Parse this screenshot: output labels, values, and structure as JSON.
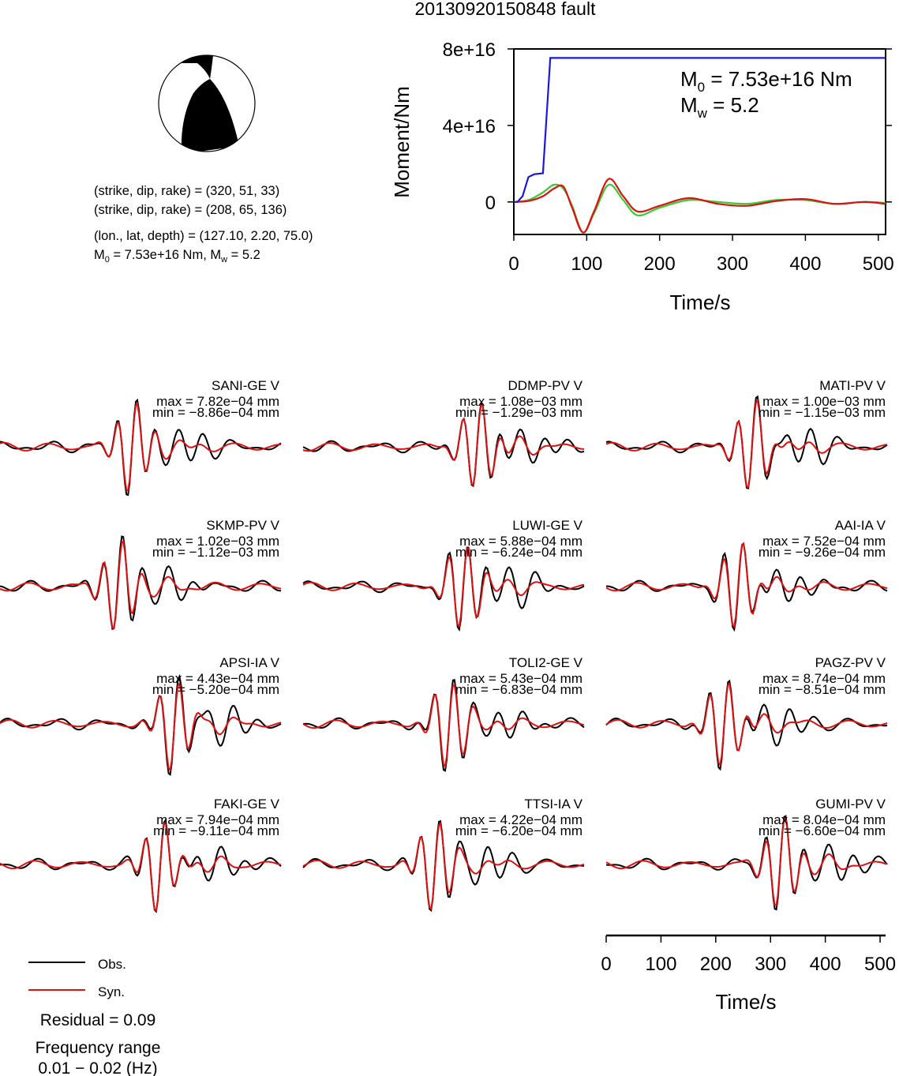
{
  "title": "20130920150848 fault",
  "mechanism": {
    "plane1": "(strike, dip, rake) = (320, 51, 33)",
    "plane2": "(strike, dip, rake) = (208, 65, 136)",
    "location": "(lon., lat, depth) = (127.10, 2.20, 75.0)",
    "m0_prefix": "M",
    "m0_sub": "0",
    "m0_mid": " = 7.53e+16 Nm, M",
    "mw_sub": "w",
    "mw_tail": " = 5.2"
  },
  "chart_data": [
    {
      "type": "line",
      "ylabel": "Moment/Nm",
      "xlabel": "Time/s",
      "xlim": [
        0,
        510
      ],
      "ylim": [
        -1.7e+16,
        8e+16
      ],
      "xticks": [
        "0",
        "100",
        "200",
        "300",
        "400",
        "500"
      ],
      "yticks": [
        "8e+16",
        "4e+16",
        "0"
      ],
      "annotation": {
        "m0_main": "M",
        "m0_sub": "0",
        "m0_rest": " = 7.53e+16 Nm",
        "mw_main": "M",
        "mw_sub": "w",
        "mw_rest": " = 5.2"
      },
      "colors": {
        "cumulative": "#1818e0",
        "red": "#dd1111",
        "green": "#33cc33"
      },
      "series": [
        {
          "color": "blue",
          "x": [
            0,
            5,
            12,
            20,
            28,
            40,
            50,
            60,
            510
          ],
          "y": [
            0,
            0,
            3000000000000000.0,
            1.3e+16,
            1.45e+16,
            1.5e+16,
            7.53e+16,
            7.53e+16,
            7.53e+16
          ]
        },
        {
          "color": "red",
          "x": [
            0,
            20,
            40,
            55,
            68,
            80,
            95,
            110,
            130,
            150,
            170,
            200,
            240,
            280,
            320,
            360,
            400,
            440,
            480,
            510
          ],
          "y": [
            0,
            500000000000000.0,
            3000000000000000.0,
            7000000000000000.0,
            8000000000000000.0,
            -3000000000000000.0,
            -1.6e+16,
            -5000000000000000.0,
            1.2e+16,
            3000000000000000.0,
            -5000000000000000.0,
            -2000000000000000.0,
            2000000000000000.0,
            -1000000000000000.0,
            -2000000000000000.0,
            500000000000000.0,
            1500000000000000.0,
            -1000000000000000.0,
            0,
            -1000000000000000.0
          ]
        },
        {
          "color": "green",
          "x": [
            0,
            20,
            40,
            55,
            68,
            80,
            95,
            110,
            130,
            150,
            170,
            200,
            240,
            280,
            320,
            360,
            400,
            440,
            480,
            510
          ],
          "y": [
            0,
            1000000000000000.0,
            5000000000000000.0,
            9000000000000000.0,
            7000000000000000.0,
            -2000000000000000.0,
            -1.6e+16,
            -6000000000000000.0,
            9000000000000000.0,
            1000000000000000.0,
            -7000000000000000.0,
            -3000000000000000.0,
            1000000000000000.0,
            0,
            -1000000000000000.0,
            1000000000000000.0,
            1000000000000000.0,
            -1000000000000000.0,
            0,
            -500000000000000.0
          ]
        }
      ]
    },
    {
      "type": "line",
      "panel": "waveforms",
      "xlabel": "Time/s",
      "xlim": [
        0,
        510
      ],
      "xticks": [
        "0",
        "100",
        "200",
        "300",
        "400",
        "500"
      ],
      "stations": [
        {
          "name": "SANI-GE V",
          "max": "max = 7.82e−04 mm",
          "min": "min = −8.86e−04 mm"
        },
        {
          "name": "DDMP-PV V",
          "max": "max = 1.08e−03 mm",
          "min": "min = −1.29e−03 mm"
        },
        {
          "name": "MATI-PV V",
          "max": "max = 1.00e−03 mm",
          "min": "min = −1.15e−03 mm"
        },
        {
          "name": "SKMP-PV V",
          "max": "max = 1.02e−03 mm",
          "min": "min = −1.12e−03 mm"
        },
        {
          "name": "LUWI-GE V",
          "max": "max = 5.88e−04 mm",
          "min": "min = −6.24e−04 mm"
        },
        {
          "name": "AAI-IA V",
          "max": "max = 7.52e−04 mm",
          "min": "min = −9.26e−04 mm"
        },
        {
          "name": "APSI-IA V",
          "max": "max = 4.43e−04 mm",
          "min": "min = −5.20e−04 mm"
        },
        {
          "name": "TOLI2-GE V",
          "max": "max = 5.43e−04 mm",
          "min": "min = −6.83e−04 mm"
        },
        {
          "name": "PAGZ-PV V",
          "max": "max = 8.74e−04 mm",
          "min": "min = −8.51e−04 mm"
        },
        {
          "name": "FAKI-GE V",
          "max": "max = 7.94e−04 mm",
          "min": "min = −9.11e−04 mm"
        },
        {
          "name": "TTSI-IA V",
          "max": "max = 4.22e−04 mm",
          "min": "min = −6.20e−04 mm"
        },
        {
          "name": "GUMI-PV V",
          "max": "max = 8.04e−04 mm",
          "min": "min = −6.60e−04 mm"
        }
      ],
      "legend": [
        {
          "label": "Obs.",
          "color": "#000000"
        },
        {
          "label": "Syn.",
          "color": "#dd1111"
        }
      ]
    }
  ],
  "footer": {
    "residual": "Residual = 0.09",
    "freq_label": "Frequency range",
    "freq_value": "0.01 − 0.02 (Hz)"
  }
}
